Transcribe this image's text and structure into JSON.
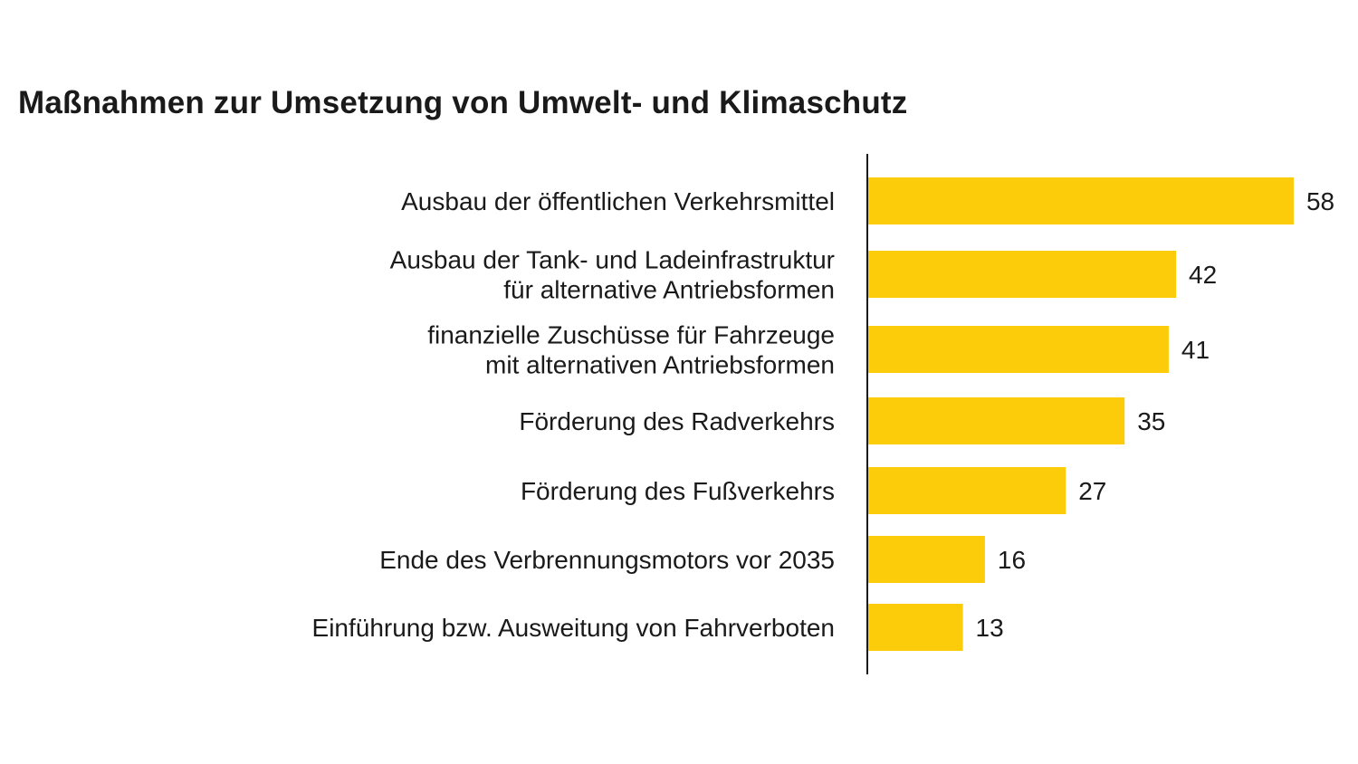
{
  "chart_data": {
    "type": "bar",
    "orientation": "horizontal",
    "title": "Maßnahmen zur Umsetzung von Umwelt- und Klimaschutz",
    "categories": [
      [
        "Ausbau der öffentlichen Verkehrsmittel"
      ],
      [
        "Ausbau der Tank- und Ladeinfrastruktur",
        "für alternative Antriebsformen"
      ],
      [
        "finanzielle Zuschüsse für Fahrzeuge",
        "mit alternativen Antriebsformen"
      ],
      [
        "Förderung des Radverkehrs"
      ],
      [
        "Förderung des Fußverkehrs"
      ],
      [
        "Ende des Verbrennungsmotors vor 2035"
      ],
      [
        "Einführung bzw. Ausweitung von Fahrverboten"
      ]
    ],
    "values": [
      58,
      42,
      41,
      35,
      27,
      16,
      13
    ],
    "bar_color": "#fccc0a",
    "axis_color": "#1a1a1a",
    "grid": false,
    "legend": "none"
  }
}
